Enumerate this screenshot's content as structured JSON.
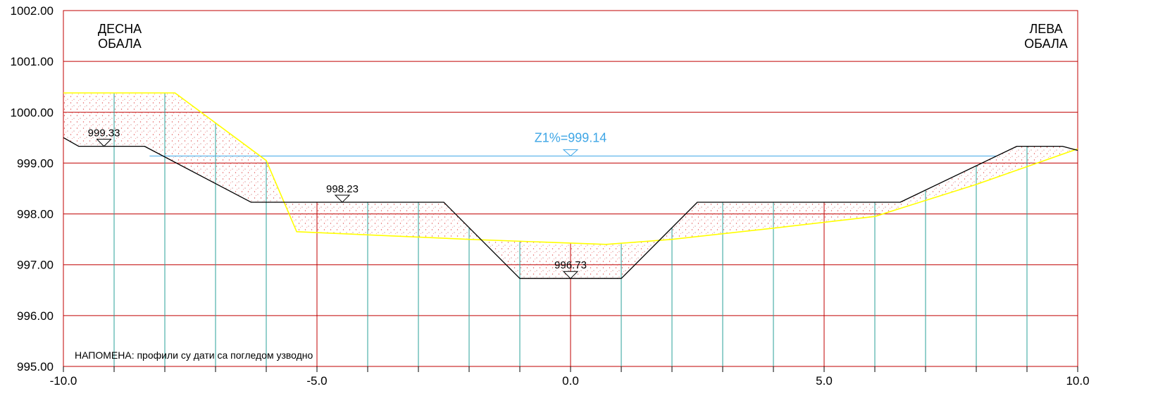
{
  "chart_data": {
    "type": "cross-section",
    "x_range": [
      -10.0,
      10.0
    ],
    "y_range": [
      995.0,
      1002.0
    ],
    "y_ticks": [
      {
        "value": 1002.0,
        "label": "1002.00"
      },
      {
        "value": 1001.0,
        "label": "1001.00"
      },
      {
        "value": 1000.0,
        "label": "1000.00"
      },
      {
        "value": 999.0,
        "label": "999.00"
      },
      {
        "value": 998.0,
        "label": "998.00"
      },
      {
        "value": 997.0,
        "label": "997.00"
      },
      {
        "value": 996.0,
        "label": "996.00"
      },
      {
        "value": 995.0,
        "label": "995.00"
      }
    ],
    "x_ticks": [
      {
        "value": -10.0,
        "label": "-10.0"
      },
      {
        "value": -5.0,
        "label": "-5.0"
      },
      {
        "value": 0.0,
        "label": "0.0"
      },
      {
        "value": 5.0,
        "label": "5.0"
      },
      {
        "value": 10.0,
        "label": "10.0"
      }
    ],
    "x_minor_step": 1.0,
    "bank_right": "ДЕСНА\nОБАЛА",
    "bank_left": "ЛЕВА\nОБАЛА",
    "water_level": {
      "label": "Z1%=999.14",
      "value": 999.14
    },
    "elevation_marks": [
      {
        "label": "999.33",
        "x": -9.2,
        "y": 999.33
      },
      {
        "label": "998.23",
        "x": -4.5,
        "y": 998.23
      },
      {
        "label": "996.73",
        "x": 0.0,
        "y": 996.73
      }
    ],
    "note": "НАПОМЕНА: профили су дати са погледом узводно",
    "design_profile": [
      [
        -10.0,
        999.5
      ],
      [
        -9.7,
        999.33
      ],
      [
        -8.4,
        999.33
      ],
      [
        -6.3,
        998.23
      ],
      [
        -2.5,
        998.23
      ],
      [
        -1.0,
        996.73
      ],
      [
        1.0,
        996.73
      ],
      [
        2.5,
        998.23
      ],
      [
        6.5,
        998.23
      ],
      [
        8.8,
        999.33
      ],
      [
        9.7,
        999.33
      ],
      [
        10.0,
        999.25
      ]
    ],
    "terrain_profile": [
      [
        -10.0,
        1000.38
      ],
      [
        -7.8,
        1000.38
      ],
      [
        -6.0,
        999.05
      ],
      [
        -5.4,
        997.65
      ],
      [
        -2.0,
        997.5
      ],
      [
        0.7,
        997.4
      ],
      [
        2.0,
        997.5
      ],
      [
        4.0,
        997.72
      ],
      [
        6.0,
        997.95
      ],
      [
        8.0,
        998.58
      ],
      [
        10.0,
        999.28
      ]
    ],
    "colors": {
      "grid_major": "#c00000",
      "station_lines": "#2aa198",
      "terrain": "#ffff00",
      "design": "#000000",
      "water": "#3ea6e6",
      "axis_frame": "#c00000"
    }
  }
}
